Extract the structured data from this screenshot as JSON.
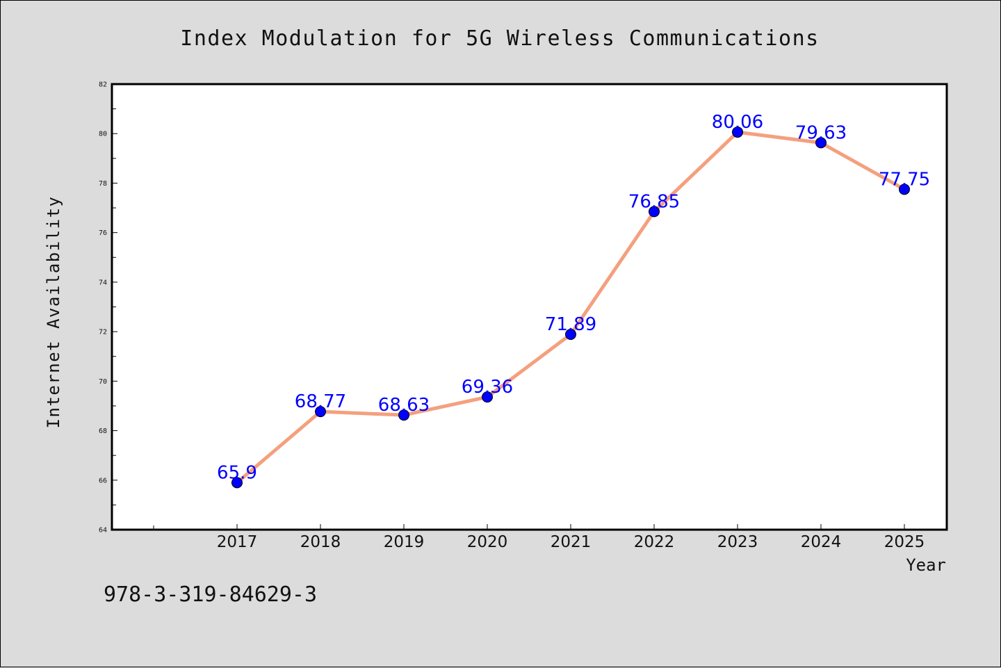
{
  "chart_data": {
    "type": "line",
    "title": "Index Modulation for 5G Wireless Communications",
    "xlabel": "Year",
    "ylabel": "Internet Availability",
    "categories": [
      "2017",
      "2018",
      "2019",
      "2020",
      "2021",
      "2022",
      "2023",
      "2024",
      "2025"
    ],
    "series": [
      {
        "values": [
          65.9,
          68.77,
          68.63,
          69.36,
          71.89,
          76.85,
          80.06,
          79.63,
          77.75
        ],
        "labels": [
          "65.9",
          "68.77",
          "68.63",
          "69.36",
          "71.89",
          "76.85",
          "80.06",
          "79.63",
          "77.75"
        ],
        "line_color": "#f4a07e",
        "marker_color": "#0000ff"
      }
    ],
    "ylim": [
      64,
      82
    ],
    "yticks": [
      "64",
      "66",
      "68",
      "70",
      "72",
      "74",
      "76",
      "78",
      "80",
      "82"
    ],
    "grid": false,
    "legend": "none"
  },
  "annotation": {
    "text": "978-3-319-84629-3"
  }
}
